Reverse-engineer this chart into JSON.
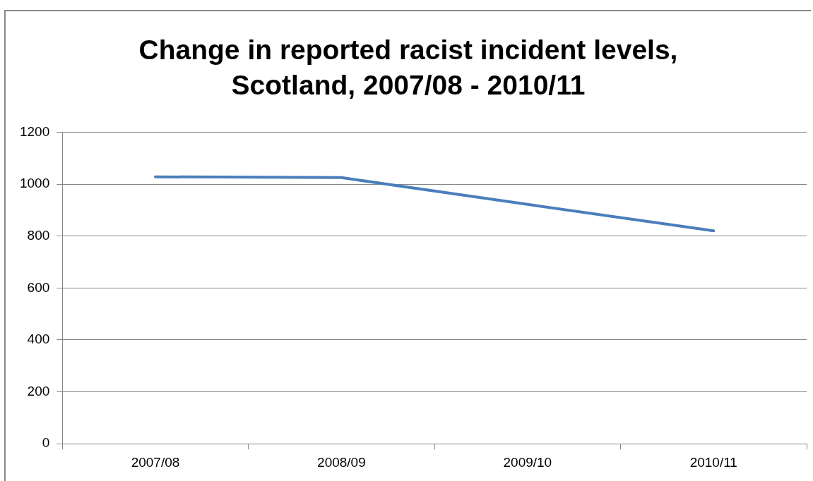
{
  "chart_data": {
    "type": "line",
    "title": "Change in reported racist incident levels, Scotland, 2007/08 - 2010/11",
    "categories": [
      "2007/08",
      "2008/09",
      "2009/10",
      "2010/11"
    ],
    "series": [
      {
        "color": "#4a7ebb",
        "values": [
          1028,
          1025,
          922,
          820
        ]
      }
    ],
    "ylim": [
      0,
      1200
    ],
    "yticks": [
      0,
      200,
      400,
      600,
      800,
      1000,
      1200
    ],
    "grid": "y",
    "legend": false,
    "marker": "none",
    "line_style": "solid"
  }
}
